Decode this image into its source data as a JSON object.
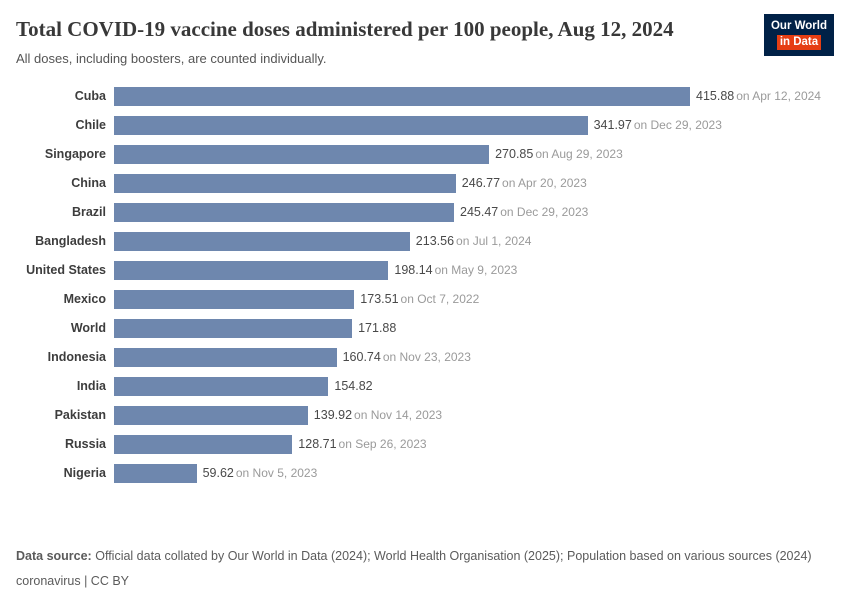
{
  "header": {
    "title": "Total COVID-19 vaccine doses administered per 100 people, Aug 12, 2024",
    "subtitle": "All doses, including boosters, are counted individually.",
    "logo": {
      "line1": "Our World",
      "line2": "in Data"
    }
  },
  "chart_data": {
    "type": "bar",
    "orientation": "horizontal",
    "title": "Total COVID-19 vaccine doses administered per 100 people, Aug 12, 2024",
    "subtitle": "All doses, including boosters, are counted individually.",
    "categories": [
      "Cuba",
      "Chile",
      "Singapore",
      "China",
      "Brazil",
      "Bangladesh",
      "United States",
      "Mexico",
      "World",
      "Indonesia",
      "India",
      "Pakistan",
      "Russia",
      "Nigeria"
    ],
    "values": [
      415.88,
      341.97,
      270.85,
      246.77,
      245.47,
      213.56,
      198.14,
      173.51,
      171.88,
      160.74,
      154.82,
      139.92,
      128.71,
      59.62
    ],
    "date_labels": [
      "on Apr 12, 2024",
      "on Dec 29, 2023",
      "on Aug 29, 2023",
      "on Apr 20, 2023",
      "on Dec 29, 2023",
      "on Jul 1, 2024",
      "on May 9, 2023",
      "on Oct 7, 2022",
      "",
      "on Nov 23, 2023",
      "",
      "on Nov 14, 2023",
      "on Sep 26, 2023",
      "on Nov 5, 2023"
    ],
    "xlim": [
      0,
      415.88
    ],
    "grid": false,
    "legend": "none",
    "value_labels_shown": true,
    "bar_color": "#6e87ae"
  },
  "footer": {
    "source_label": "Data source:",
    "source_text": "Official data collated by Our World in Data (2024); World Health Organisation (2025); Population based on various sources (2024)",
    "license": "coronavirus | CC BY"
  },
  "colors": {
    "bar": "#6e87ae",
    "logo_bg": "#002147",
    "logo_accent": "#e63e13",
    "title_text": "#383838",
    "date_text": "#9a9a9a"
  }
}
